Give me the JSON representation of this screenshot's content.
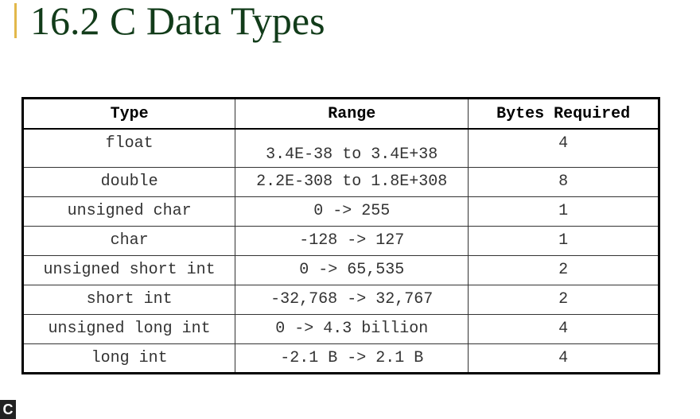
{
  "title": "16.2   C Data Types",
  "table": {
    "headers": [
      "Type",
      "Range",
      "Bytes Required"
    ],
    "rows": [
      {
        "type": "float",
        "range": "3.4E-38 to 3.4E+38",
        "bytes": "4"
      },
      {
        "type": "double",
        "range": "2.2E-308 to 1.8E+308",
        "bytes": "8"
      },
      {
        "type": "unsigned char",
        "range": "0 -> 255",
        "bytes": "1"
      },
      {
        "type": "char",
        "range": "-128 -> 127",
        "bytes": "1"
      },
      {
        "type": "unsigned short int",
        "range": "0 -> 65,535",
        "bytes": "2"
      },
      {
        "type": "short int",
        "range": "-32,768 -> 32,767",
        "bytes": "2"
      },
      {
        "type": "unsigned long int",
        "range": "0 -> 4.3 billion",
        "bytes": "4"
      },
      {
        "type": "long int",
        "range": "-2.1 B -> 2.1 B",
        "bytes": "4"
      }
    ]
  },
  "corner_label": "C",
  "colors": {
    "title": "#123c1a",
    "accent": "#e2b84a"
  }
}
